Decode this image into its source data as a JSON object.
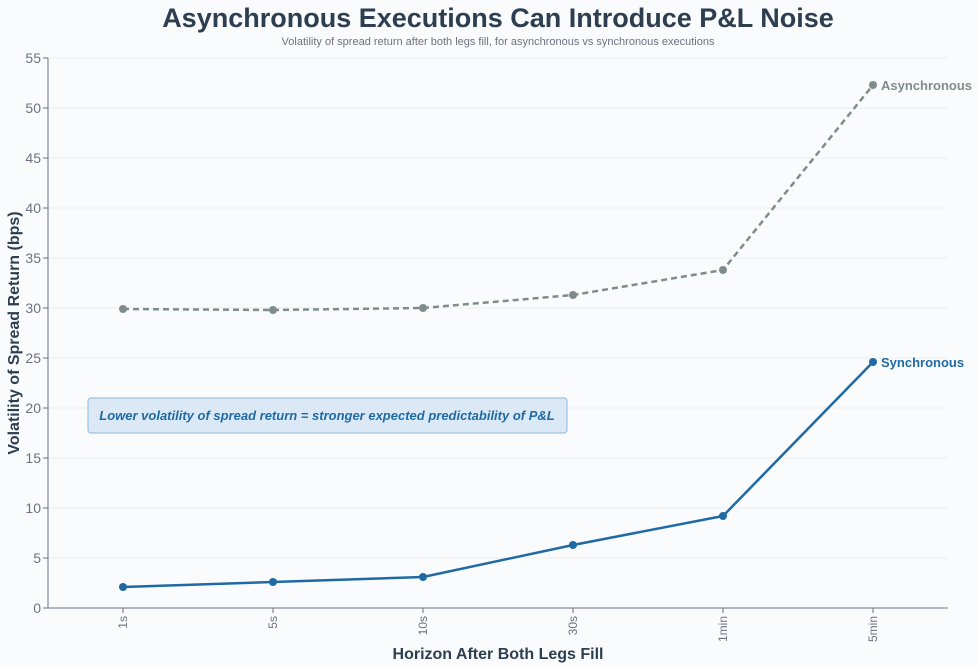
{
  "chart_data": {
    "type": "line",
    "title": "Asynchronous Executions Can Introduce P&L Noise",
    "subtitle": "Volatility of spread return after both legs fill, for asynchronous vs synchronous executions",
    "xlabel": "Horizon After Both Legs Fill",
    "ylabel": "Volatility of Spread Return (bps)",
    "categories": [
      "1s",
      "5s",
      "10s",
      "30s",
      "1min",
      "5min"
    ],
    "ylim": [
      0,
      55
    ],
    "yticks": [
      "0",
      "5",
      "10",
      "15",
      "20",
      "25",
      "30",
      "35",
      "40",
      "45",
      "50",
      "55"
    ],
    "grid": true,
    "series": [
      {
        "name": "Asynchronous",
        "values": [
          29.9,
          29.8,
          30.0,
          31.3,
          33.8,
          52.3
        ],
        "color": "#7f8c8d",
        "dash": "dashed"
      },
      {
        "name": "Synchronous",
        "values": [
          2.1,
          2.6,
          3.1,
          6.3,
          9.2,
          24.6
        ],
        "color": "#1f6aa5",
        "dash": "solid"
      }
    ],
    "annotation": {
      "text": "Lower volatility of spread return = stronger expected predictability of P&L",
      "text_color": "#1f6aa5",
      "box_fill": "#dbe9f6",
      "box_stroke": "#9cc3df"
    }
  }
}
